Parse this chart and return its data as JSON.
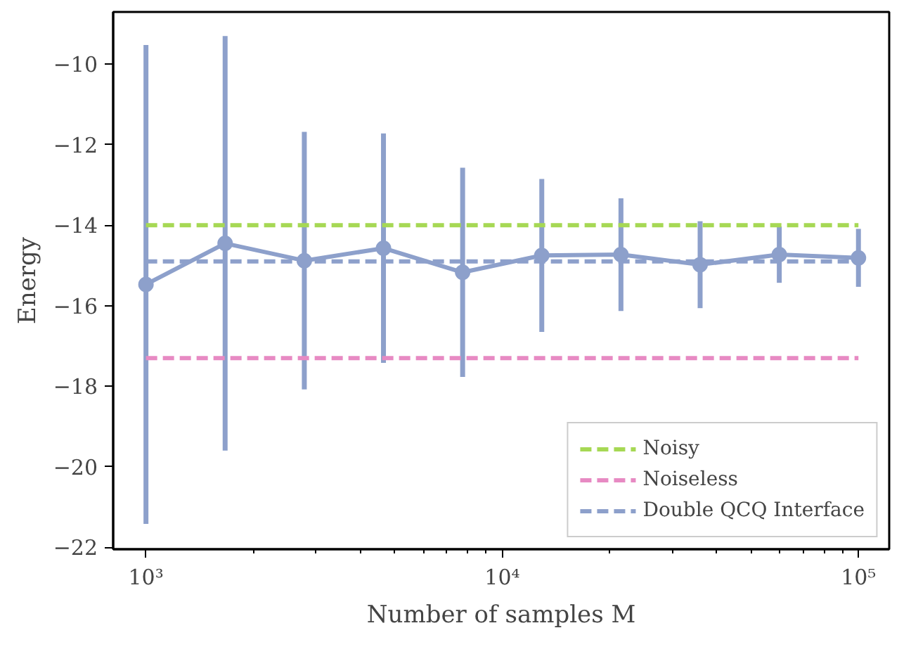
{
  "chart_data": {
    "type": "line",
    "xlabel": "Number of samples M",
    "ylabel": "Energy",
    "log": "x",
    "xlim": [
      809,
      122000
    ],
    "ylim": [
      -22.05,
      -8.7
    ],
    "xticks": [
      {
        "value": 1000,
        "label": "10³"
      },
      {
        "value": 2000,
        "label": null
      },
      {
        "value": 3000,
        "label": null
      },
      {
        "value": 4000,
        "label": null
      },
      {
        "value": 5000,
        "label": null
      },
      {
        "value": 6000,
        "label": null
      },
      {
        "value": 7000,
        "label": null
      },
      {
        "value": 8000,
        "label": null
      },
      {
        "value": 9000,
        "label": null
      },
      {
        "value": 10000,
        "label": "10⁴"
      },
      {
        "value": 20000,
        "label": null
      },
      {
        "value": 30000,
        "label": null
      },
      {
        "value": 40000,
        "label": null
      },
      {
        "value": 50000,
        "label": null
      },
      {
        "value": 60000,
        "label": null
      },
      {
        "value": 70000,
        "label": null
      },
      {
        "value": 80000,
        "label": null
      },
      {
        "value": 90000,
        "label": null
      },
      {
        "value": 100000,
        "label": "10⁵"
      }
    ],
    "yticks": [
      -22,
      -20,
      -18,
      -16,
      -14,
      -12,
      -10
    ],
    "grid": false,
    "legend": "bottom right",
    "series": [
      {
        "name": "Noisy",
        "color": "#a6d854",
        "x": [
          1000,
          100000
        ],
        "values": [
          -14.0,
          -14.0
        ],
        "line_style": "dashed",
        "marker": "none"
      },
      {
        "name": "Noiseless",
        "color": "#e78ac3",
        "x": [
          1000,
          100000
        ],
        "values": [
          -17.3,
          -17.3
        ],
        "line_style": "dashed",
        "marker": "none"
      },
      {
        "name": "Double QCQ Interface",
        "color": "#8da0cb",
        "x": [
          1000,
          100000
        ],
        "values": [
          -14.9,
          -14.9
        ],
        "line_style": "dashed",
        "marker": "none"
      },
      {
        "color": "#8da0cb",
        "x": [
          1000,
          1668,
          2783,
          4642,
          7743,
          12915,
          21544,
          35938,
          59948,
          100000
        ],
        "values": [
          -15.47,
          -14.45,
          -14.88,
          -14.57,
          -15.17,
          -14.75,
          -14.73,
          -14.98,
          -14.73,
          -14.81
        ],
        "errors": [
          5.95,
          5.15,
          3.2,
          2.85,
          2.6,
          1.9,
          1.4,
          1.08,
          0.7,
          0.72
        ],
        "line_style": "solid",
        "marker": "circle"
      }
    ]
  }
}
